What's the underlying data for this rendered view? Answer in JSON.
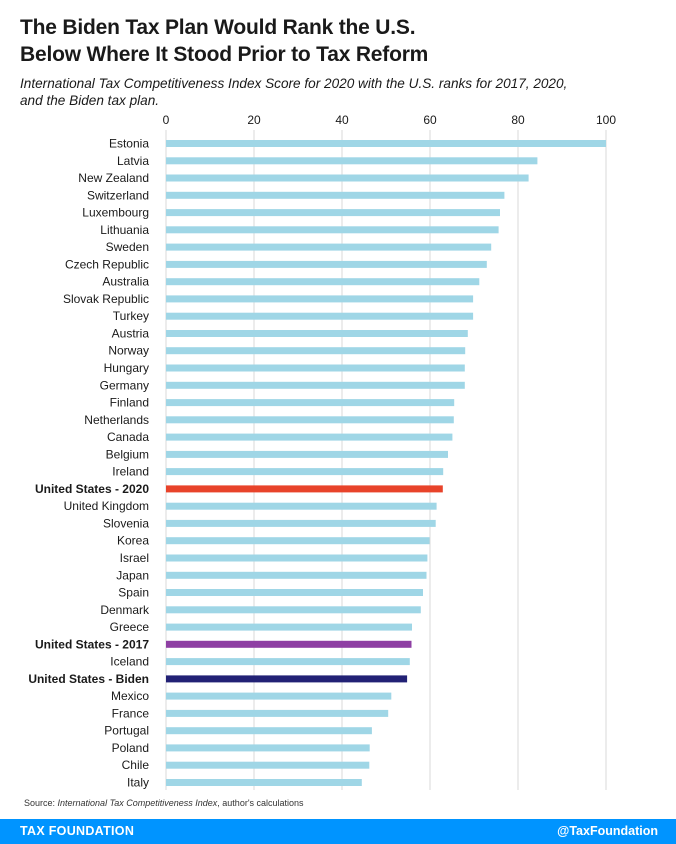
{
  "title_line1": "The Biden Tax Plan Would Rank the U.S.",
  "title_line2": "Below Where It Stood Prior to Tax Reform",
  "subtitle_line1": "International Tax Competitiveness Index Score for 2020 with the U.S. ranks for 2017, 2020,",
  "subtitle_line2": "and the Biden tax plan.",
  "source_prefix": "Source: ",
  "source_title": "International Tax Competitiveness Index",
  "source_suffix": ", author's calculations",
  "footer": {
    "brand": "TAX FOUNDATION",
    "handle": "@TaxFoundation"
  },
  "colors": {
    "default_bar": "#9fd6e6",
    "us_2020": "#e8432a",
    "us_2017": "#8e3fa3",
    "us_biden": "#222175",
    "footer": "#0094ff"
  },
  "chart_data": {
    "type": "bar",
    "orientation": "horizontal",
    "xlim": [
      0,
      100
    ],
    "xticks": [
      0,
      20,
      40,
      60,
      80,
      100
    ],
    "axis_position": "top",
    "grid": true,
    "categories": [
      "Estonia",
      "Latvia",
      "New Zealand",
      "Switzerland",
      "Luxembourg",
      "Lithuania",
      "Sweden",
      "Czech Republic",
      "Australia",
      "Slovak Republic",
      "Turkey",
      "Austria",
      "Norway",
      "Hungary",
      "Germany",
      "Finland",
      "Netherlands",
      "Canada",
      "Belgium",
      "Ireland",
      "United States - 2020",
      "United Kingdom",
      "Slovenia",
      "Korea",
      "Israel",
      "Japan",
      "Spain",
      "Denmark",
      "Greece",
      "United States - 2017",
      "Iceland",
      "United States - Biden",
      "Mexico",
      "France",
      "Portugal",
      "Poland",
      "Chile",
      "Italy"
    ],
    "values": [
      100,
      84.4,
      82.4,
      76.9,
      75.9,
      75.6,
      73.9,
      72.9,
      71.2,
      69.8,
      69.8,
      68.6,
      68.0,
      67.9,
      67.9,
      65.5,
      65.4,
      65.1,
      64.1,
      63.0,
      62.9,
      61.5,
      61.3,
      59.9,
      59.4,
      59.2,
      58.4,
      57.9,
      55.9,
      55.8,
      55.4,
      54.8,
      51.2,
      50.5,
      46.8,
      46.3,
      46.2,
      44.5
    ],
    "highlights": {
      "United States - 2020": "us_2020",
      "United States - 2017": "us_2017",
      "United States - Biden": "us_biden"
    }
  }
}
